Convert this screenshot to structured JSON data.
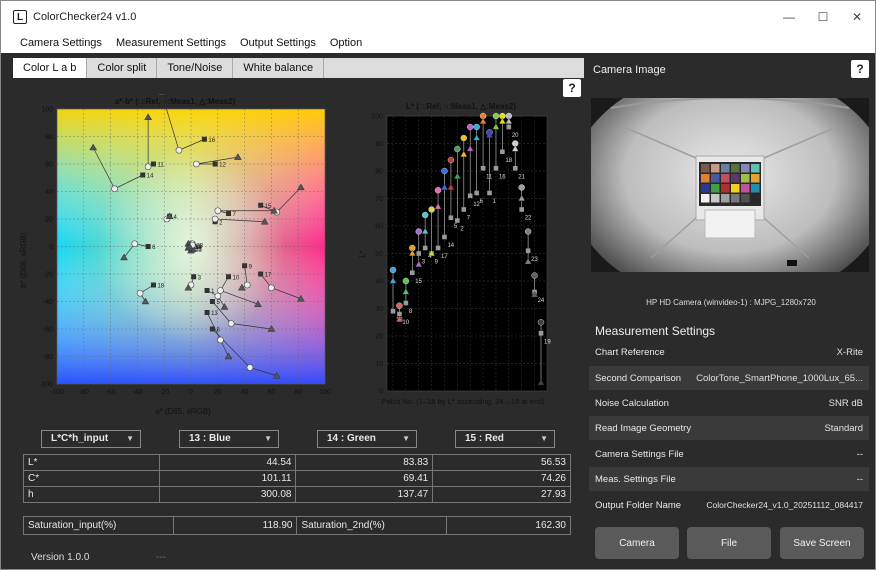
{
  "window": {
    "app_icon_letter": "L",
    "title": "ColorChecker24 v1.0",
    "minimize_glyph": "—",
    "maximize_glyph": "☐",
    "close_glyph": "✕"
  },
  "menu": [
    "Camera Settings",
    "Measurement Settings",
    "Output Settings",
    "Option"
  ],
  "tabs": [
    {
      "label": "Color L a b",
      "active": true
    },
    {
      "label": "Color split",
      "active": false
    },
    {
      "label": "Tone/Noise",
      "active": false
    },
    {
      "label": "White balance",
      "active": false
    }
  ],
  "help_label": "?",
  "chart_data": [
    {
      "type": "scatter",
      "title": "a*-b* (□:Ref, ○:Meas1, △:Meas2)",
      "xlabel": "a* (D65, sRGB)",
      "ylabel": "b* (D65, sRGB)",
      "xlim": [
        -100,
        100
      ],
      "ylim": [
        -100,
        100
      ],
      "x_ticks": [
        -100,
        -80,
        -60,
        -40,
        -20,
        0,
        20,
        40,
        60,
        80,
        100
      ],
      "y_ticks": [
        100,
        80,
        60,
        40,
        20,
        0,
        -20,
        -40,
        -60,
        -80,
        -100
      ],
      "grid": true,
      "background": "a*b* color plane",
      "patches": [
        {
          "id": "14",
          "ref": [
            -36,
            52
          ],
          "meas1": [
            -57,
            42
          ],
          "meas2": [
            -73,
            72
          ]
        },
        {
          "id": "16",
          "ref": [
            10,
            78
          ],
          "meas1": [
            -9,
            70
          ],
          "meas2": [
            -22,
            112
          ]
        },
        {
          "id": "12",
          "ref": [
            18,
            60
          ],
          "meas1": [
            4,
            60
          ],
          "meas2": [
            35,
            65
          ]
        },
        {
          "id": "11",
          "ref": [
            -28,
            60
          ],
          "meas1": [
            -32,
            58
          ],
          "meas2": [
            -32,
            94
          ]
        },
        {
          "id": "15",
          "ref": [
            52,
            30
          ],
          "meas1": [
            64,
            25
          ],
          "meas2": [
            82,
            43
          ]
        },
        {
          "id": "4",
          "ref": [
            -16,
            22
          ],
          "meas1": [
            -18,
            20
          ],
          "meas2": [
            -16,
            22
          ]
        },
        {
          "id": "6",
          "ref": [
            -32,
            0
          ],
          "meas1": [
            -42,
            2
          ],
          "meas2": [
            -50,
            -8
          ]
        },
        {
          "id": "7",
          "ref": [
            28,
            24
          ],
          "meas1": [
            20,
            26
          ],
          "meas2": [
            62,
            26
          ]
        },
        {
          "id": "2",
          "ref": [
            18,
            18
          ],
          "meas1": [
            18,
            20
          ],
          "meas2": [
            55,
            18
          ]
        },
        {
          "id": "19",
          "ref": [
            0,
            0
          ],
          "meas1": [
            0,
            2
          ],
          "meas2": [
            -2,
            2
          ]
        },
        {
          "id": "20",
          "ref": [
            0,
            -2
          ],
          "meas1": [
            2,
            0
          ],
          "meas2": [
            0,
            -3
          ]
        },
        {
          "id": "21",
          "ref": [
            0,
            -1
          ],
          "meas1": [
            -1,
            0
          ],
          "meas2": [
            1,
            -2
          ]
        },
        {
          "id": "22",
          "ref": [
            -1,
            0
          ],
          "meas1": [
            1,
            2
          ],
          "meas2": [
            -2,
            -1
          ]
        },
        {
          "id": "23",
          "ref": [
            1,
            1
          ],
          "meas1": [
            0,
            0
          ],
          "meas2": [
            0,
            1
          ]
        },
        {
          "id": "24",
          "ref": [
            0,
            0
          ],
          "meas1": [
            1,
            1
          ],
          "meas2": [
            -1,
            0
          ]
        },
        {
          "id": "10",
          "ref": [
            28,
            -22
          ],
          "meas1": [
            22,
            -32
          ],
          "meas2": [
            50,
            -42
          ]
        },
        {
          "id": "17",
          "ref": [
            52,
            -20
          ],
          "meas1": [
            60,
            -30
          ],
          "meas2": [
            82,
            -38
          ]
        },
        {
          "id": "3",
          "ref": [
            2,
            -22
          ],
          "meas1": [
            0,
            -28
          ],
          "meas2": [
            -2,
            -30
          ]
        },
        {
          "id": "18",
          "ref": [
            -28,
            -28
          ],
          "meas1": [
            -38,
            -34
          ],
          "meas2": [
            -34,
            -40
          ]
        },
        {
          "id": "1",
          "ref": [
            12,
            -32
          ],
          "meas1": [
            20,
            -36
          ],
          "meas2": [
            25,
            -44
          ]
        },
        {
          "id": "9",
          "ref": [
            40,
            -14
          ],
          "meas1": [
            42,
            -28
          ],
          "meas2": [
            38,
            -30
          ]
        },
        {
          "id": "5",
          "ref": [
            16,
            -40
          ],
          "meas1": [
            30,
            -56
          ],
          "meas2": [
            60,
            -60
          ]
        },
        {
          "id": "13",
          "ref": [
            12,
            -48
          ],
          "meas1": [
            22,
            -68
          ],
          "meas2": [
            28,
            -80
          ]
        },
        {
          "id": "8",
          "ref": [
            16,
            -60
          ],
          "meas1": [
            44,
            -88
          ],
          "meas2": [
            64,
            -94
          ]
        }
      ],
      "point_labels": [
        "14",
        "16",
        "12",
        "11",
        "15",
        "4",
        "6",
        "7",
        "2",
        "19",
        "20",
        "21",
        "22",
        "23",
        "24",
        "10",
        "17",
        "3",
        "18",
        "1",
        "9",
        "5",
        "13",
        "8"
      ]
    },
    {
      "type": "scatter",
      "title": "L* (□:Ref, ○:Meas1, △:Meas2)",
      "xlabel": "Patch No. (1–18 by L* ascending, 24→19 at end)",
      "ylabel": "L*",
      "ylim": [
        0,
        100
      ],
      "y_ticks": [
        100,
        90,
        80,
        70,
        60,
        50,
        40,
        30,
        20,
        10,
        0
      ],
      "grid": true,
      "series": [
        {
          "name": "Ref",
          "values": [
            29,
            28,
            32,
            43,
            50,
            52,
            50,
            52,
            56,
            63,
            62,
            66,
            71,
            72,
            81,
            72,
            81,
            87,
            96,
            81,
            66,
            51,
            36,
            21
          ]
        },
        {
          "name": "Meas1",
          "values": [
            44,
            31,
            40,
            52,
            58,
            64,
            66,
            73,
            80,
            84,
            88,
            92,
            96,
            96,
            100,
            94,
            100,
            100,
            100,
            90,
            74,
            58,
            42,
            25
          ]
        },
        {
          "name": "Meas2",
          "values": [
            40,
            26,
            36,
            50,
            46,
            58,
            50,
            67,
            74,
            74,
            78,
            86,
            88,
            92,
            98,
            93,
            96,
            98,
            98,
            88,
            70,
            47,
            35,
            3
          ]
        }
      ],
      "point_labels": [
        "13",
        "10",
        "8",
        "15",
        "3",
        "4",
        "9",
        "17",
        "14",
        "5",
        "2",
        "7",
        "12",
        "6",
        "11",
        "1",
        "16",
        "18",
        "20",
        "21",
        "22",
        "23",
        "24",
        "19"
      ]
    }
  ],
  "selectors": [
    {
      "label": "L*C*h_input"
    },
    {
      "label": "13 : Blue"
    },
    {
      "label": "14 : Green"
    },
    {
      "label": "15 : Red"
    }
  ],
  "caret_glyph": "▼",
  "table": {
    "rows": [
      {
        "label": "L*",
        "values": [
          "44.54",
          "83.83",
          "56.53"
        ]
      },
      {
        "label": "C*",
        "values": [
          "101.11",
          "69.41",
          "74.26"
        ]
      },
      {
        "label": "h",
        "values": [
          "300.08",
          "137.47",
          "27.93"
        ]
      }
    ]
  },
  "saturation": {
    "input_label": "Saturation_input(%)",
    "input_value": "118.90",
    "second_label": "Saturation_2nd(%)",
    "second_value": "162.30"
  },
  "version": "Version 1.0.0",
  "version_dash": "---",
  "camera": {
    "title": "Camera Image",
    "caption": "HP HD Camera (winvideo-1) : MJPG_1280x720"
  },
  "measurement_settings": {
    "title": "Measurement Settings",
    "rows": [
      {
        "label": "Chart Reference",
        "value": "X-Rite"
      },
      {
        "label": "Second Comparison",
        "value": "ColorTone_SmartPhone_1000Lux_65..."
      },
      {
        "label": "Noise Calculation",
        "value": "SNR dB"
      },
      {
        "label": "Read Image Geometry",
        "value": "Standard"
      },
      {
        "label": "Camera Settings File",
        "value": "--"
      },
      {
        "label": "Meas. Settings File",
        "value": "--"
      },
      {
        "label": "Output Folder Name",
        "value": "ColorChecker24_v1.0_20251112_084417"
      }
    ]
  },
  "buttons": {
    "camera": "Camera",
    "file": "File",
    "save_screen": "Save Screen"
  }
}
